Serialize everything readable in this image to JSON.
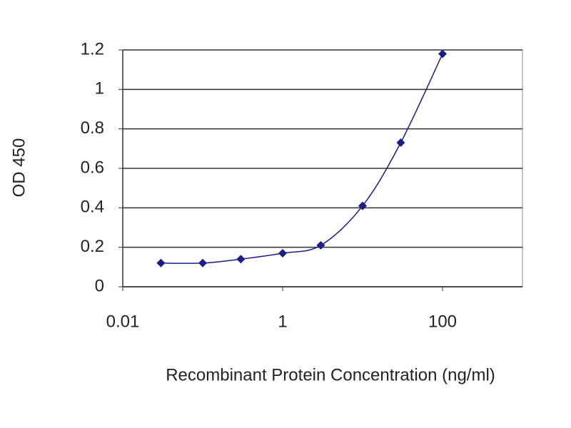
{
  "chart_data": {
    "type": "line",
    "xlabel": "Recombinant Protein Concentration (ng/ml)",
    "ylabel": "OD 450",
    "x": [
      0.03,
      0.1,
      0.3,
      1,
      3,
      10,
      30,
      100
    ],
    "series": [
      {
        "color": "#1c1c8a",
        "values": [
          0.12,
          0.12,
          0.14,
          0.17,
          0.21,
          0.41,
          0.73,
          1.18
        ]
      }
    ],
    "xlog": true,
    "xlim": [
      0.01,
      1000
    ],
    "xticks": [
      0.01,
      1,
      100
    ],
    "ylim": [
      0,
      1.2
    ],
    "yticks": [
      0,
      0.2,
      0.4,
      0.6,
      0.8,
      1,
      1.2
    ],
    "grid": true
  }
}
